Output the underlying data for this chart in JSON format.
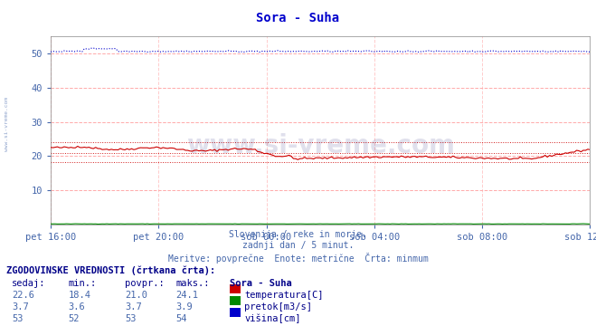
{
  "title": "Sora - Suha",
  "title_color": "#0000cc",
  "bg_color": "#ffffff",
  "plot_bg_color": "#ffffff",
  "grid_color": "#ffaaaa",
  "grid_vline_color": "#ffcccc",
  "axis_label_color": "#4466aa",
  "subtitle_lines": [
    "Slovenija / reke in morje.",
    "zadnji dan / 5 minut.",
    "Meritve: povprečne  Enote: metrične  Črta: minmum"
  ],
  "xlabel_ticks": [
    "pet 16:00",
    "pet 20:00",
    "sob 00:00",
    "sob 04:00",
    "sob 08:00",
    "sob 12:00"
  ],
  "yticks": [
    10,
    20,
    30,
    40,
    50
  ],
  "ylim": [
    0,
    55
  ],
  "xlim": [
    0,
    240
  ],
  "temp_min": 18.4,
  "temp_max": 24.1,
  "temp_avg": 21.0,
  "temp_current": 22.6,
  "pretok_min": 3.6,
  "pretok_max": 3.9,
  "pretok_avg": 3.7,
  "pretok_current": 3.7,
  "visina_min": 52,
  "visina_max": 54,
  "visina_avg": 53,
  "visina_current": 53,
  "temp_color": "#cc0000",
  "pretok_color": "#008800",
  "visina_color": "#0000cc",
  "watermark": "www.si-vreme.com",
  "watermark_color": "#000066",
  "left_label": "www.si-vreme.com",
  "left_label_color": "#4466aa",
  "table_header_color": "#000088",
  "table_value_color": "#4466aa",
  "n_points": 241,
  "visina_plot_value": 50.5,
  "pretok_plot_value": 0.3
}
